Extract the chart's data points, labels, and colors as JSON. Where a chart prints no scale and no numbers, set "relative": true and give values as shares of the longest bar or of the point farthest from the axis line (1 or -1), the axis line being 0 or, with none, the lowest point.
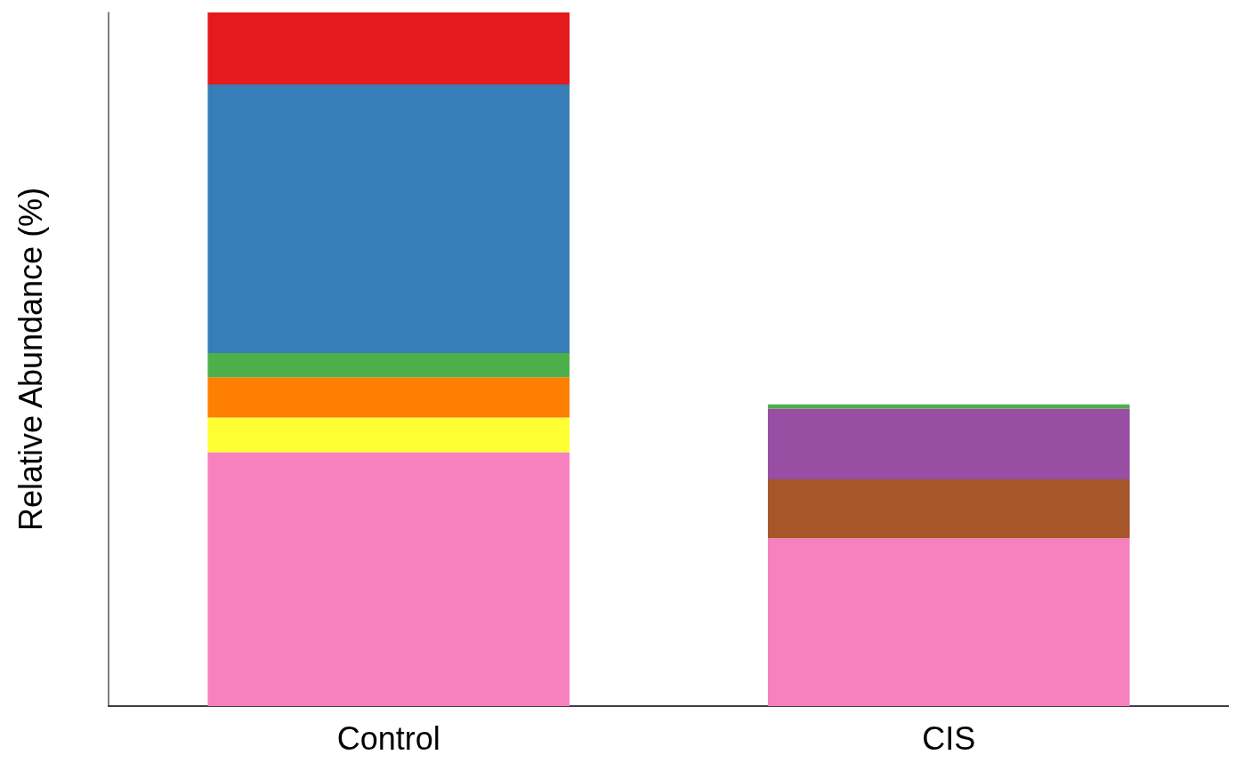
{
  "chart_data": {
    "type": "bar",
    "stacked": true,
    "relative": true,
    "ylabel": "Relative Abundance (%)",
    "categories": [
      "Control",
      "CIS"
    ],
    "series": [
      {
        "color": "#f781bf",
        "values": [
          0.366,
          0.242
        ]
      },
      {
        "color": "#ffff33",
        "values": [
          0.05,
          null
        ]
      },
      {
        "color": "#ff7f00",
        "values": [
          0.058,
          null
        ]
      },
      {
        "color": "#a65628",
        "values": [
          null,
          0.085
        ]
      },
      {
        "color": "#984ea3",
        "values": [
          null,
          0.102
        ]
      },
      {
        "color": "#4daf4a",
        "values": [
          0.035,
          0.006
        ]
      },
      {
        "color": "#377eb8",
        "values": [
          0.387,
          null
        ]
      },
      {
        "color": "#e41a1c",
        "values": [
          0.104,
          null
        ]
      }
    ],
    "grid": false
  }
}
